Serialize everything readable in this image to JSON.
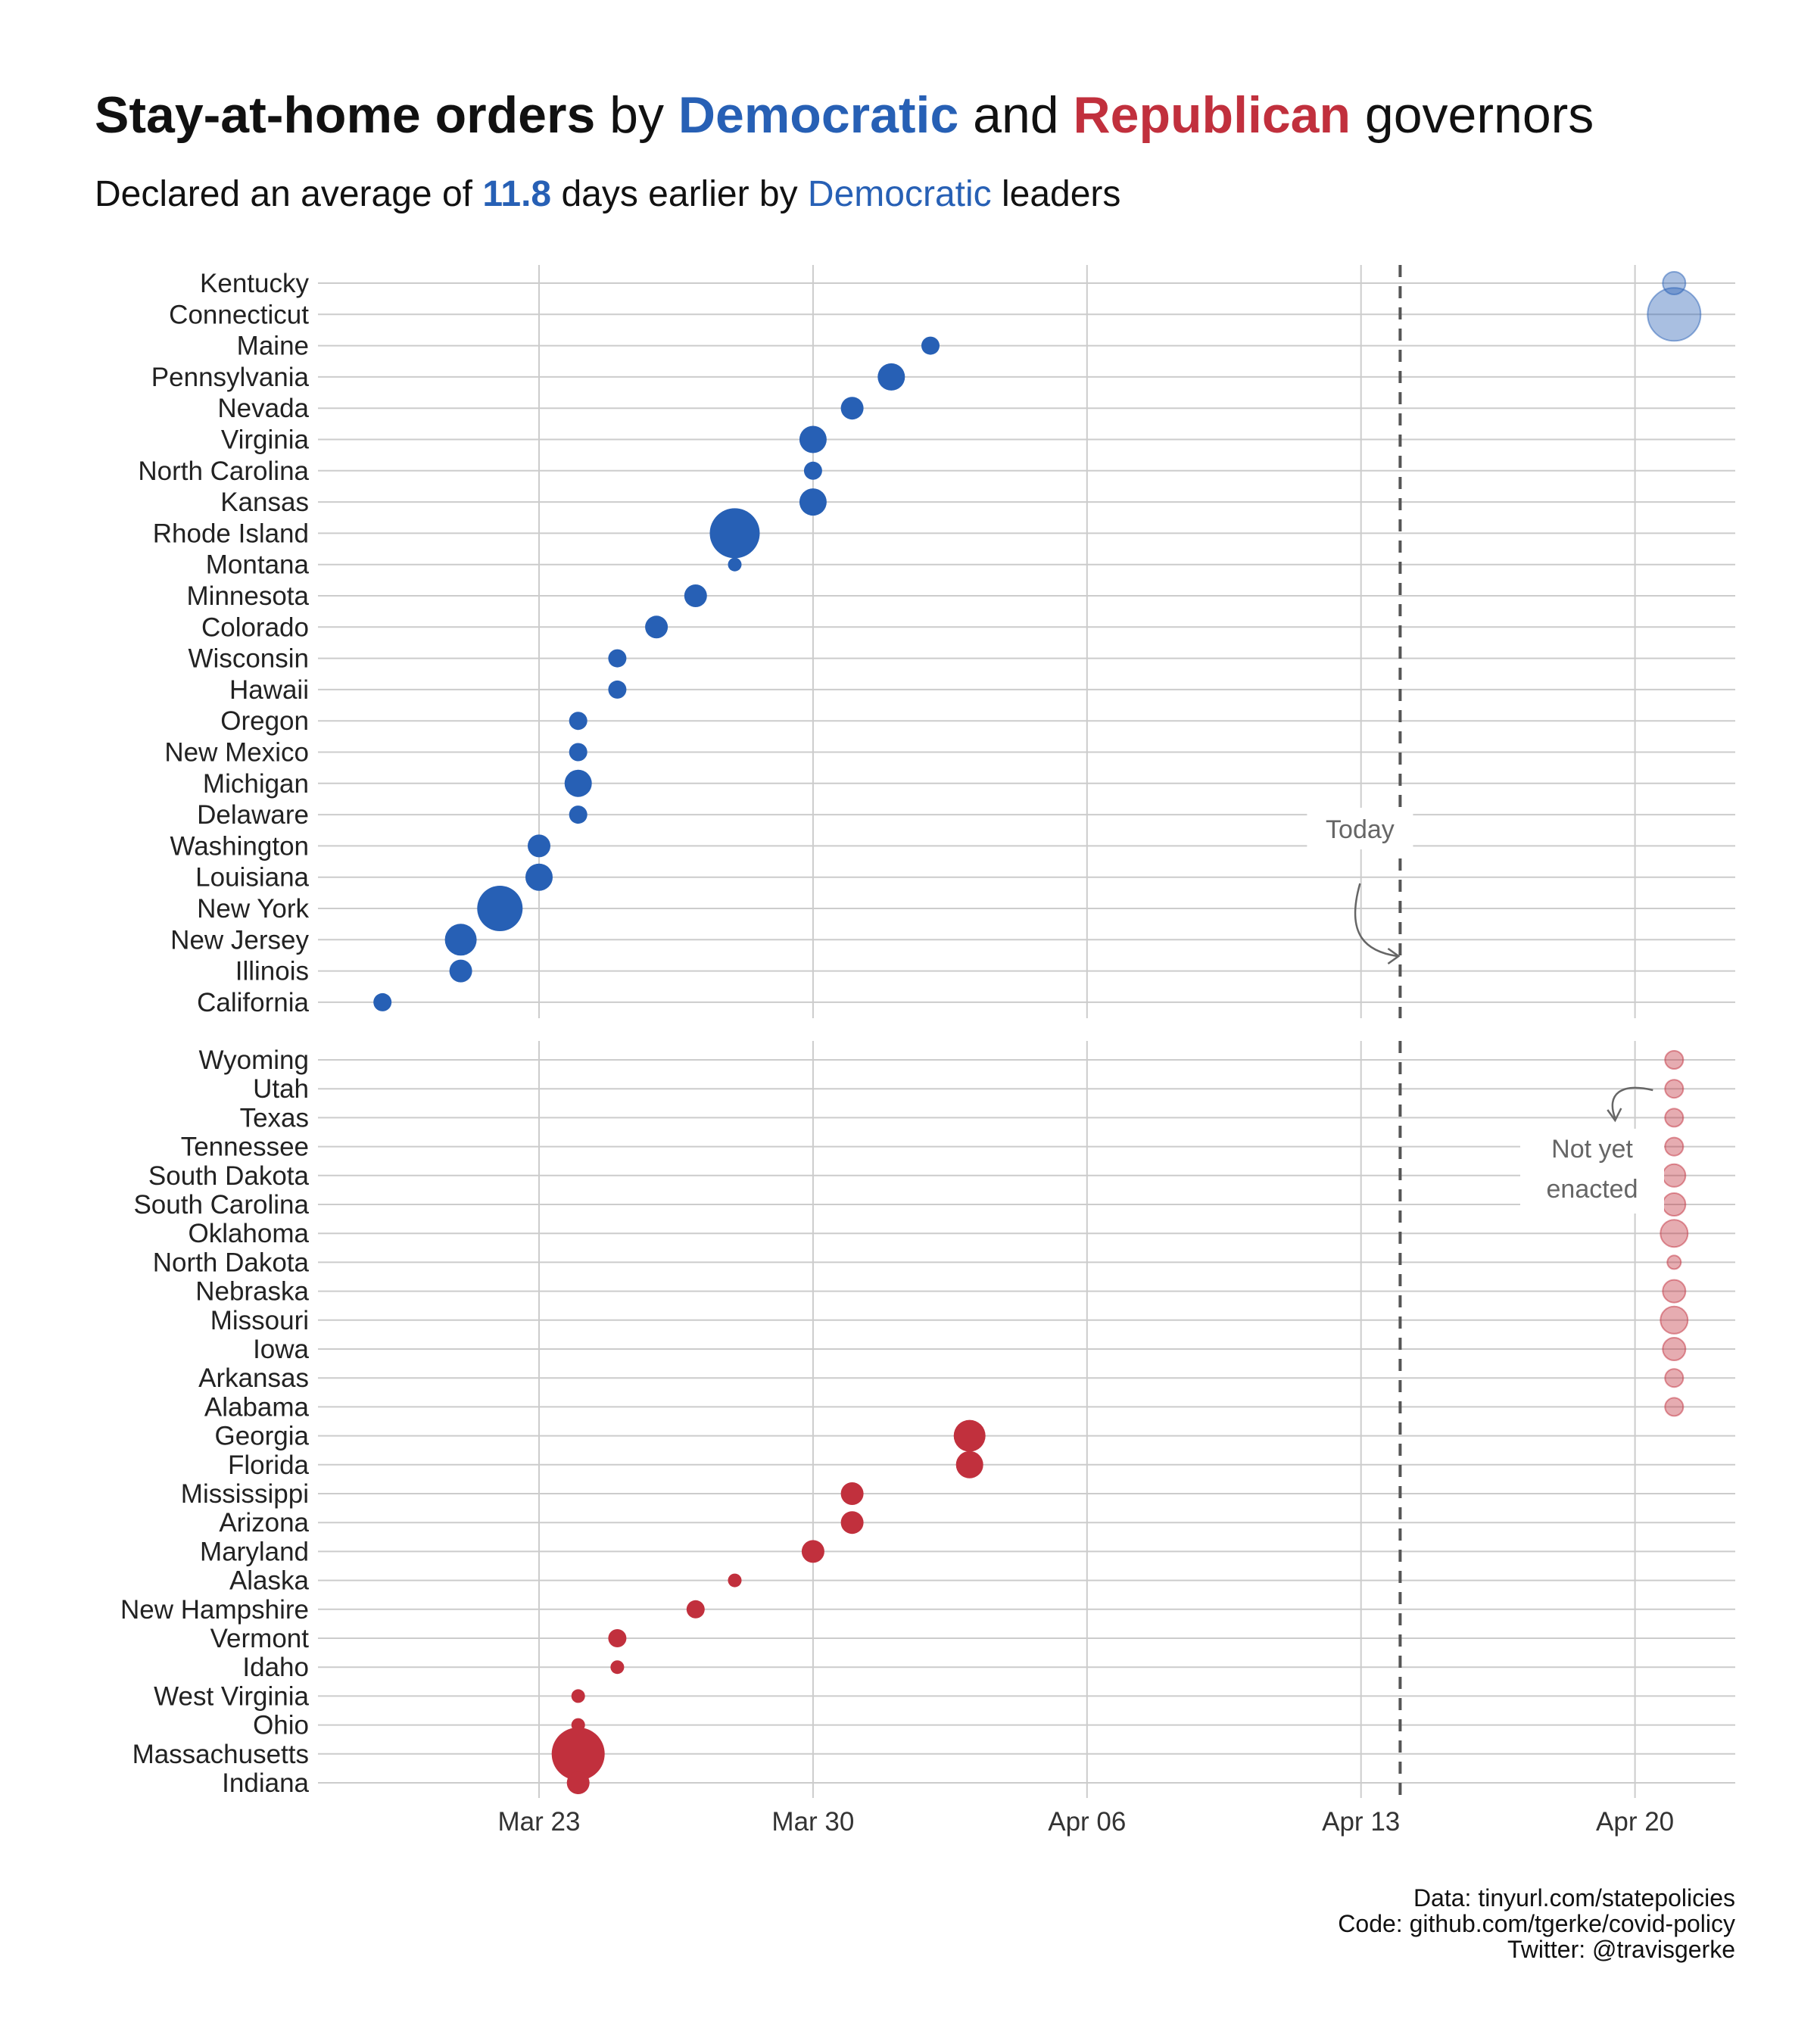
{
  "title": {
    "part1": "Stay-at-home orders",
    "part2": " by ",
    "part3": "Democratic",
    "part4": " and ",
    "part5": "Republican",
    "part6": " governors"
  },
  "subtitle": {
    "part1": "Declared an average of ",
    "part2": "11.8",
    "part3": " days earlier by ",
    "part4": "Democratic",
    "part5": " leaders"
  },
  "caption": {
    "line1": "Data: tinyurl.com/statepolicies",
    "line2": "Code: github.com/tgerke/covid-policy",
    "line3": "Twitter: @travisgerke"
  },
  "annotations": {
    "today": "Today",
    "not_yet_line1": "Not yet",
    "not_yet_line2": "enacted"
  },
  "colors": {
    "democratic": "#2760b5",
    "republican": "#c1303d",
    "grid": "#cccccc",
    "today_line": "#555555"
  },
  "chart_data": {
    "type": "scatter",
    "x_axis": {
      "type": "date",
      "ticks": [
        "Mar 23",
        "Mar 30",
        "Apr 06",
        "Apr 13",
        "Apr 20"
      ],
      "tick_dates": [
        "2020-03-23",
        "2020-03-30",
        "2020-04-06",
        "2020-04-13",
        "2020-04-20"
      ],
      "range": [
        "2020-03-17",
        "2020-04-23"
      ]
    },
    "today": "2020-04-14",
    "not_yet_enacted_marker_date": "2020-04-21",
    "size_note": "point size proportional to state population",
    "panels": [
      {
        "party": "Democratic",
        "color_key": "democratic",
        "states": [
          {
            "name": "Kentucky",
            "date": null,
            "size": 2
          },
          {
            "name": "Connecticut",
            "date": null,
            "size": 8
          },
          {
            "name": "Maine",
            "date": "2020-04-02",
            "size": 1
          },
          {
            "name": "Pennsylvania",
            "date": "2020-04-01",
            "size": 3
          },
          {
            "name": "Nevada",
            "date": "2020-03-31",
            "size": 2
          },
          {
            "name": "Virginia",
            "date": "2020-03-30",
            "size": 3
          },
          {
            "name": "North Carolina",
            "date": "2020-03-30",
            "size": 1
          },
          {
            "name": "Kansas",
            "date": "2020-03-30",
            "size": 3
          },
          {
            "name": "Rhode Island",
            "date": "2020-03-28",
            "size": 7
          },
          {
            "name": "Montana",
            "date": "2020-03-28",
            "size": 0
          },
          {
            "name": "Minnesota",
            "date": "2020-03-27",
            "size": 2
          },
          {
            "name": "Colorado",
            "date": "2020-03-26",
            "size": 2
          },
          {
            "name": "Wisconsin",
            "date": "2020-03-25",
            "size": 1
          },
          {
            "name": "Hawaii",
            "date": "2020-03-25",
            "size": 1
          },
          {
            "name": "Oregon",
            "date": "2020-03-24",
            "size": 1
          },
          {
            "name": "New Mexico",
            "date": "2020-03-24",
            "size": 1
          },
          {
            "name": "Michigan",
            "date": "2020-03-24",
            "size": 3
          },
          {
            "name": "Delaware",
            "date": "2020-03-24",
            "size": 1
          },
          {
            "name": "Washington",
            "date": "2020-03-23",
            "size": 2
          },
          {
            "name": "Louisiana",
            "date": "2020-03-23",
            "size": 3
          },
          {
            "name": "New York",
            "date": "2020-03-22",
            "size": 6
          },
          {
            "name": "New Jersey",
            "date": "2020-03-21",
            "size": 4
          },
          {
            "name": "Illinois",
            "date": "2020-03-21",
            "size": 2
          },
          {
            "name": "California",
            "date": "2020-03-19",
            "size": 1
          }
        ]
      },
      {
        "party": "Republican",
        "color_key": "republican",
        "states": [
          {
            "name": "Wyoming",
            "date": null,
            "size": 1
          },
          {
            "name": "Utah",
            "date": null,
            "size": 1
          },
          {
            "name": "Texas",
            "date": null,
            "size": 1
          },
          {
            "name": "Tennessee",
            "date": null,
            "size": 1
          },
          {
            "name": "South Dakota",
            "date": null,
            "size": 2
          },
          {
            "name": "South Carolina",
            "date": null,
            "size": 2
          },
          {
            "name": "Oklahoma",
            "date": null,
            "size": 3
          },
          {
            "name": "North Dakota",
            "date": null,
            "size": 0
          },
          {
            "name": "Nebraska",
            "date": null,
            "size": 2
          },
          {
            "name": "Missouri",
            "date": null,
            "size": 3
          },
          {
            "name": "Iowa",
            "date": null,
            "size": 2
          },
          {
            "name": "Arkansas",
            "date": null,
            "size": 1
          },
          {
            "name": "Alabama",
            "date": null,
            "size": 1
          },
          {
            "name": "Georgia",
            "date": "2020-04-03",
            "size": 4
          },
          {
            "name": "Florida",
            "date": "2020-04-03",
            "size": 3
          },
          {
            "name": "Mississippi",
            "date": "2020-03-31",
            "size": 2
          },
          {
            "name": "Arizona",
            "date": "2020-03-31",
            "size": 2
          },
          {
            "name": "Maryland",
            "date": "2020-03-30",
            "size": 2
          },
          {
            "name": "Alaska",
            "date": "2020-03-28",
            "size": 0
          },
          {
            "name": "New Hampshire",
            "date": "2020-03-27",
            "size": 1
          },
          {
            "name": "Vermont",
            "date": "2020-03-25",
            "size": 1
          },
          {
            "name": "Idaho",
            "date": "2020-03-25",
            "size": 0
          },
          {
            "name": "West Virginia",
            "date": "2020-03-24",
            "size": 0
          },
          {
            "name": "Ohio",
            "date": "2020-03-24",
            "size": 0
          },
          {
            "name": "Massachusetts",
            "date": "2020-03-24",
            "size": 8
          },
          {
            "name": "Indiana",
            "date": "2020-03-24",
            "size": 2
          }
        ]
      }
    ]
  }
}
